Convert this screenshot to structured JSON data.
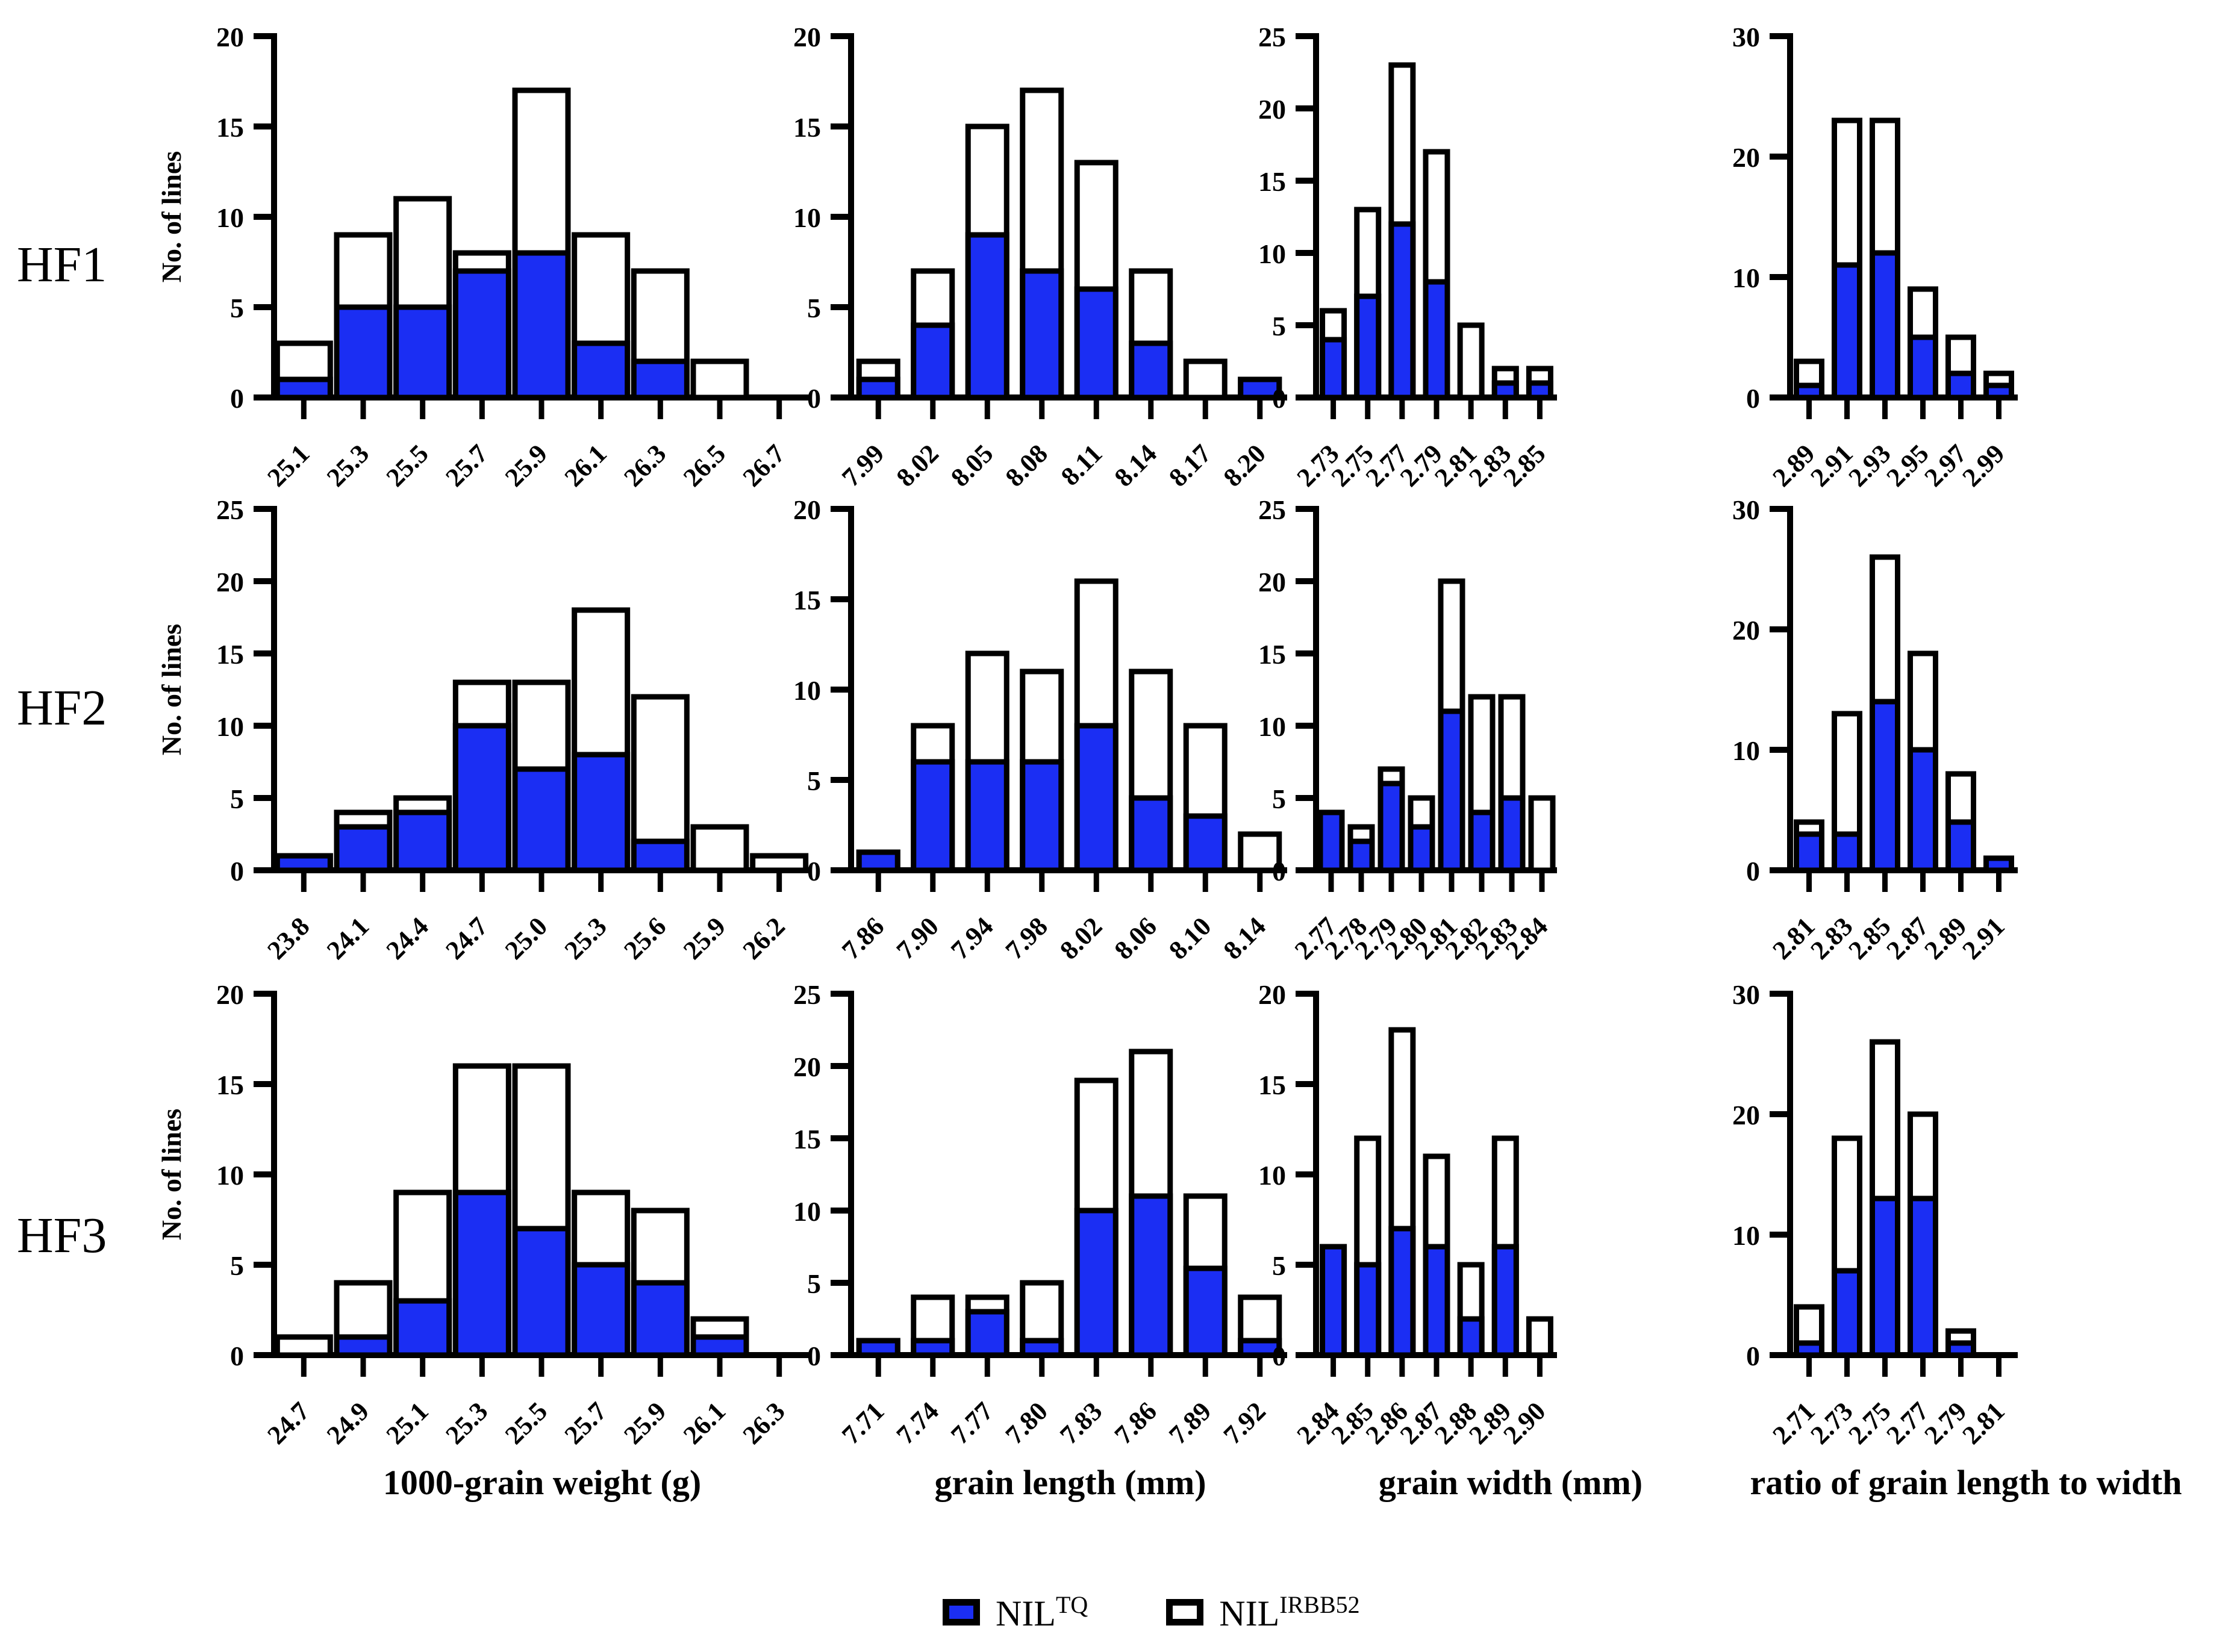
{
  "colors": {
    "blue": "#1b2ef3",
    "white": "#ffffff",
    "black": "#000000"
  },
  "ylabel": "No. of lines",
  "rows": [
    {
      "label": "HF1"
    },
    {
      "label": "HF2"
    },
    {
      "label": "HF3"
    }
  ],
  "columns": [
    {
      "title": "1000-grain weight (g)"
    },
    {
      "title": "grain length (mm)"
    },
    {
      "title": "grain width (mm)"
    },
    {
      "title": "ratio of grain length to width"
    }
  ],
  "legend": {
    "items": [
      {
        "label": "NIL",
        "sup": "TQ",
        "fill": "blue"
      },
      {
        "label": "NIL",
        "sup": "IRBB52",
        "fill": "white"
      }
    ]
  },
  "chart_data": [
    {
      "type": "bar",
      "stacked": true,
      "row": "HF1",
      "xlabel": "1000-grain weight (g)",
      "ylabel": "No. of lines",
      "categories": [
        "25.1",
        "25.3",
        "25.5",
        "25.7",
        "25.9",
        "26.1",
        "26.3",
        "26.5",
        "26.7"
      ],
      "series": [
        {
          "name": "NIL-TQ",
          "values": [
            1,
            5,
            5,
            7,
            8,
            3,
            2,
            0,
            0
          ]
        },
        {
          "name": "NIL-IRBB52",
          "values": [
            2,
            4,
            6,
            1,
            9,
            6,
            5,
            2,
            0
          ]
        }
      ],
      "totals": [
        3,
        9,
        11,
        8,
        17,
        9,
        7,
        2,
        0
      ],
      "ylim": [
        0,
        20
      ],
      "yticks": [
        0,
        5,
        10,
        15,
        20
      ],
      "grid": false
    },
    {
      "type": "bar",
      "stacked": true,
      "row": "HF1",
      "xlabel": "grain length (mm)",
      "ylabel": "No. of lines",
      "categories": [
        "7.99",
        "8.02",
        "8.05",
        "8.08",
        "8.11",
        "8.14",
        "8.17",
        "8.20"
      ],
      "series": [
        {
          "name": "NIL-TQ",
          "values": [
            1,
            4,
            9,
            7,
            6,
            3,
            0,
            1
          ]
        },
        {
          "name": "NIL-IRBB52",
          "values": [
            1,
            3,
            6,
            10,
            7,
            4,
            2,
            0
          ]
        }
      ],
      "totals": [
        2,
        7,
        15,
        17,
        13,
        7,
        2,
        1
      ],
      "ylim": [
        0,
        20
      ],
      "yticks": [
        0,
        5,
        10,
        15,
        20
      ],
      "grid": false
    },
    {
      "type": "bar",
      "stacked": true,
      "row": "HF1",
      "xlabel": "grain width (mm)",
      "ylabel": "No. of lines",
      "categories": [
        "2.73",
        "2.75",
        "2.77",
        "2.79",
        "2.81",
        "2.83",
        "2.85"
      ],
      "series": [
        {
          "name": "NIL-TQ",
          "values": [
            4,
            7,
            12,
            8,
            0,
            1,
            1
          ]
        },
        {
          "name": "NIL-IRBB52",
          "values": [
            2,
            6,
            11,
            9,
            5,
            1,
            1
          ]
        }
      ],
      "totals": [
        6,
        13,
        23,
        17,
        5,
        2,
        2
      ],
      "ylim": [
        0,
        25
      ],
      "yticks": [
        0,
        5,
        10,
        15,
        20,
        25
      ],
      "grid": false
    },
    {
      "type": "bar",
      "stacked": true,
      "row": "HF1",
      "xlabel": "ratio of grain length to width",
      "ylabel": "No. of lines",
      "categories": [
        "2.89",
        "2.91",
        "2.93",
        "2.95",
        "2.97",
        "2.99"
      ],
      "series": [
        {
          "name": "NIL-TQ",
          "values": [
            1,
            11,
            12,
            5,
            2,
            1
          ]
        },
        {
          "name": "NIL-IRBB52",
          "values": [
            2,
            12,
            11,
            4,
            3,
            1
          ]
        }
      ],
      "totals": [
        3,
        23,
        23,
        9,
        5,
        2
      ],
      "ylim": [
        0,
        30
      ],
      "yticks": [
        0,
        10,
        20,
        30
      ],
      "grid": false
    },
    {
      "type": "bar",
      "stacked": true,
      "row": "HF2",
      "xlabel": "1000-grain weight (g)",
      "ylabel": "No. of lines",
      "categories": [
        "23.8",
        "24.1",
        "24.4",
        "24.7",
        "25.0",
        "25.3",
        "25.6",
        "25.9",
        "26.2"
      ],
      "series": [
        {
          "name": "NIL-TQ",
          "values": [
            1,
            3,
            4,
            10,
            7,
            8,
            2,
            0,
            0
          ]
        },
        {
          "name": "NIL-IRBB52",
          "values": [
            0,
            1,
            1,
            3,
            6,
            10,
            10,
            3,
            1
          ]
        }
      ],
      "totals": [
        1,
        4,
        5,
        13,
        13,
        18,
        12,
        3,
        1
      ],
      "ylim": [
        0,
        25
      ],
      "yticks": [
        0,
        5,
        10,
        15,
        20,
        25
      ],
      "grid": false
    },
    {
      "type": "bar",
      "stacked": true,
      "row": "HF2",
      "xlabel": "grain length (mm)",
      "ylabel": "No. of lines",
      "categories": [
        "7.86",
        "7.90",
        "7.94",
        "7.98",
        "8.02",
        "8.06",
        "8.10",
        "8.14"
      ],
      "series": [
        {
          "name": "NIL-TQ",
          "values": [
            1,
            6,
            6,
            6,
            8,
            4,
            3,
            0
          ]
        },
        {
          "name": "NIL-IRBB52",
          "values": [
            0,
            2,
            6,
            5,
            8,
            7,
            5,
            2
          ]
        }
      ],
      "totals": [
        1,
        8,
        12,
        11,
        16,
        11,
        8,
        2
      ],
      "ylim": [
        0,
        20
      ],
      "yticks": [
        0,
        5,
        10,
        15,
        20
      ],
      "grid": false
    },
    {
      "type": "bar",
      "stacked": true,
      "row": "HF2",
      "xlabel": "grain width (mm)",
      "ylabel": "No. of lines",
      "categories": [
        "2.77",
        "2.78",
        "2.79",
        "2.80",
        "2.81",
        "2.82",
        "2.83",
        "2.84"
      ],
      "series": [
        {
          "name": "NIL-TQ",
          "values": [
            4,
            2,
            6,
            3,
            11,
            4,
            5,
            0
          ]
        },
        {
          "name": "NIL-IRBB52",
          "values": [
            0,
            1,
            1,
            2,
            9,
            8,
            7,
            5
          ]
        }
      ],
      "totals": [
        4,
        3,
        7,
        5,
        20,
        12,
        12,
        5
      ],
      "ylim": [
        0,
        25
      ],
      "yticks": [
        0,
        5,
        10,
        15,
        20,
        25
      ],
      "grid": false
    },
    {
      "type": "bar",
      "stacked": true,
      "row": "HF2",
      "xlabel": "ratio of grain length to width",
      "ylabel": "No. of lines",
      "categories": [
        "2.81",
        "2.83",
        "2.85",
        "2.87",
        "2.89",
        "2.91"
      ],
      "series": [
        {
          "name": "NIL-TQ",
          "values": [
            3,
            3,
            14,
            10,
            4,
            1
          ]
        },
        {
          "name": "NIL-IRBB52",
          "values": [
            1,
            10,
            12,
            8,
            4,
            0
          ]
        }
      ],
      "totals": [
        4,
        13,
        26,
        18,
        8,
        1
      ],
      "ylim": [
        0,
        30
      ],
      "yticks": [
        0,
        10,
        20,
        30
      ],
      "grid": false
    },
    {
      "type": "bar",
      "stacked": true,
      "row": "HF3",
      "xlabel": "1000-grain weight (g)",
      "ylabel": "No. of lines",
      "categories": [
        "24.7",
        "24.9",
        "25.1",
        "25.3",
        "25.5",
        "25.7",
        "25.9",
        "26.1",
        "26.3"
      ],
      "series": [
        {
          "name": "NIL-TQ",
          "values": [
            0,
            1,
            3,
            9,
            7,
            5,
            4,
            1,
            0
          ]
        },
        {
          "name": "NIL-IRBB52",
          "values": [
            1,
            3,
            6,
            7,
            9,
            4,
            4,
            1,
            0
          ]
        }
      ],
      "totals": [
        1,
        4,
        9,
        16,
        16,
        9,
        8,
        2,
        0
      ],
      "ylim": [
        0,
        20
      ],
      "yticks": [
        0,
        5,
        10,
        15,
        20
      ],
      "grid": false
    },
    {
      "type": "bar",
      "stacked": true,
      "row": "HF3",
      "xlabel": "grain length (mm)",
      "ylabel": "No. of lines",
      "categories": [
        "7.71",
        "7.74",
        "7.77",
        "7.80",
        "7.83",
        "7.86",
        "7.89",
        "7.92"
      ],
      "series": [
        {
          "name": "NIL-TQ",
          "values": [
            1,
            1,
            3,
            1,
            10,
            11,
            6,
            1
          ]
        },
        {
          "name": "NIL-IRBB52",
          "values": [
            0,
            3,
            1,
            4,
            9,
            10,
            5,
            3
          ]
        }
      ],
      "totals": [
        1,
        4,
        4,
        5,
        19,
        21,
        11,
        4
      ],
      "ylim": [
        0,
        25
      ],
      "yticks": [
        0,
        5,
        10,
        15,
        20,
        25
      ],
      "grid": false
    },
    {
      "type": "bar",
      "stacked": true,
      "row": "HF3",
      "xlabel": "grain width (mm)",
      "ylabel": "No. of lines",
      "categories": [
        "2.84",
        "2.85",
        "2.86",
        "2.87",
        "2.88",
        "2.89",
        "2.90"
      ],
      "series": [
        {
          "name": "NIL-TQ",
          "values": [
            6,
            5,
            7,
            6,
            2,
            6,
            0
          ]
        },
        {
          "name": "NIL-IRBB52",
          "values": [
            0,
            7,
            11,
            5,
            3,
            6,
            2
          ]
        }
      ],
      "totals": [
        6,
        12,
        18,
        11,
        5,
        12,
        2
      ],
      "ylim": [
        0,
        20
      ],
      "yticks": [
        0,
        5,
        10,
        15,
        20
      ],
      "grid": false
    },
    {
      "type": "bar",
      "stacked": true,
      "row": "HF3",
      "xlabel": "ratio of grain length to width",
      "ylabel": "No. of lines",
      "categories": [
        "2.71",
        "2.73",
        "2.75",
        "2.77",
        "2.79",
        "2.81"
      ],
      "series": [
        {
          "name": "NIL-TQ",
          "values": [
            1,
            7,
            13,
            13,
            1,
            0
          ]
        },
        {
          "name": "NIL-IRBB52",
          "values": [
            3,
            11,
            13,
            7,
            1,
            0
          ]
        }
      ],
      "totals": [
        4,
        18,
        26,
        20,
        2,
        0
      ],
      "ylim": [
        0,
        30
      ],
      "yticks": [
        0,
        10,
        20,
        30
      ],
      "grid": false
    }
  ]
}
